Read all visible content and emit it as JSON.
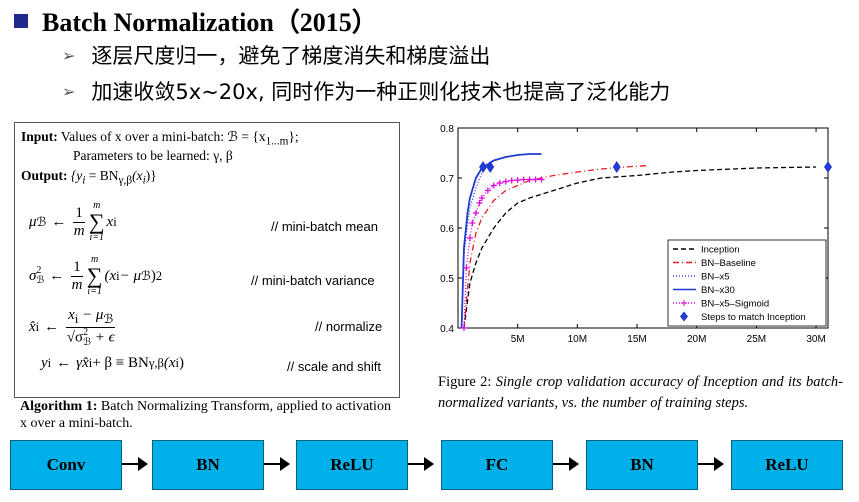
{
  "header": {
    "title": "Batch Normalization（2015）",
    "bullets": [
      "逐层尺度归一，避免了梯度消失和梯度溢出",
      "加速收敛5x~20x, 同时作为一种正则化技术也提高了泛化能力"
    ]
  },
  "algorithm": {
    "input_label": "Input:",
    "input_text": "Values of x over a mini-batch: ℬ = {x",
    "input_sub": "1...m",
    "input_close": "};",
    "params_text": "Parameters to be learned: γ, β",
    "output_label": "Output:",
    "output_text": "{y",
    "output_sub_i": "i",
    "output_rest": " = BN",
    "output_sub_gb": "γ,β",
    "output_end": "(x",
    "output_end2": ")}",
    "eq1": {
      "lhs": "μ",
      "lhs_sub": "ℬ",
      "arrow": "←",
      "frac_num": "1",
      "frac_den": "m",
      "sum_top": "m",
      "sum_bot": "i=1",
      "term": "x",
      "term_sub": "i",
      "comment": "// mini-batch mean"
    },
    "eq2": {
      "lhs": "σ",
      "lhs_sup": "2",
      "lhs_sub": "ℬ",
      "arrow": "←",
      "frac_num": "1",
      "frac_den": "m",
      "sum_top": "m",
      "sum_bot": "i=1",
      "term": "(x",
      "term_sub": "i",
      "term_rest": " − μ",
      "term_rest_sub": "ℬ",
      "term_end": ")",
      "term_sup": "2",
      "comment": "// mini-batch variance"
    },
    "eq3": {
      "lhs": "x̂",
      "lhs_sub": "i",
      "arrow": "←",
      "num": "x",
      "num_sub": "i",
      "num_rest": " − μ",
      "num_rest_sub": "ℬ",
      "den": "√σ",
      "den_sup": "2",
      "den_sub": "ℬ",
      "den_rest": " + ϵ",
      "comment": "// normalize"
    },
    "eq4": {
      "lhs": "y",
      "lhs_sub": "i",
      "arrow": "←",
      "rhs": "γx̂",
      "rhs_sub": "i",
      "rhs_rest": " + β ≡ BN",
      "rhs_sub2": "γ,β",
      "rhs_end": "(x",
      "rhs_end_sub": "i",
      "rhs_end2": ")",
      "comment": "// scale and shift"
    },
    "caption_label": "Algorithm 1:",
    "caption_text": " Batch Normalizing Transform, applied to activation x over a mini-batch."
  },
  "figure": {
    "caption_label": "Figure 2:",
    "caption_text": " Single crop validation accuracy of Inception and its batch-normalized variants, vs. the number of training steps."
  },
  "chart_data": {
    "type": "line",
    "xlabel": "",
    "ylabel": "",
    "xlim": [
      0,
      31
    ],
    "ylim": [
      0.4,
      0.8
    ],
    "x_ticks": [
      {
        "value": 5,
        "label": "5M"
      },
      {
        "value": 10,
        "label": "10M"
      },
      {
        "value": 15,
        "label": "15M"
      },
      {
        "value": 20,
        "label": "20M"
      },
      {
        "value": 25,
        "label": "25M"
      },
      {
        "value": 30,
        "label": "30M"
      }
    ],
    "y_ticks": [
      {
        "value": 0.4,
        "label": "0.4"
      },
      {
        "value": 0.5,
        "label": "0.5"
      },
      {
        "value": 0.6,
        "label": "0.6"
      },
      {
        "value": 0.7,
        "label": "0.7"
      },
      {
        "value": 0.8,
        "label": "0.8"
      }
    ],
    "legend_position": "bottom-right",
    "series": [
      {
        "name": "Inception",
        "color": "#000000",
        "style": "dashed",
        "x": [
          0.5,
          1,
          1.5,
          2,
          3,
          4,
          5,
          6,
          8,
          10,
          12,
          15,
          18,
          20,
          25,
          30
        ],
        "y": [
          0.4,
          0.49,
          0.53,
          0.56,
          0.6,
          0.63,
          0.65,
          0.66,
          0.675,
          0.69,
          0.7,
          0.705,
          0.712,
          0.715,
          0.72,
          0.722
        ]
      },
      {
        "name": "BN–Baseline",
        "color": "#e02020",
        "style": "dashdot",
        "x": [
          0.5,
          1,
          1.5,
          2,
          3,
          4,
          5,
          6,
          8,
          10,
          12,
          14,
          16
        ],
        "y": [
          0.4,
          0.53,
          0.59,
          0.62,
          0.655,
          0.675,
          0.685,
          0.695,
          0.705,
          0.712,
          0.718,
          0.722,
          0.725
        ]
      },
      {
        "name": "BN–x5",
        "color": "#4040c0",
        "style": "dotted",
        "x": [
          0.3,
          0.5,
          1,
          1.5,
          2,
          2.5
        ],
        "y": [
          0.4,
          0.55,
          0.64,
          0.68,
          0.71,
          0.725
        ]
      },
      {
        "name": "BN–x30",
        "color": "#1f3bd0",
        "style": "solid",
        "x": [
          0.3,
          0.5,
          0.8,
          1,
          1.5,
          2,
          3,
          4,
          5,
          6,
          7
        ],
        "y": [
          0.4,
          0.56,
          0.63,
          0.66,
          0.7,
          0.72,
          0.735,
          0.742,
          0.746,
          0.748,
          0.748
        ]
      },
      {
        "name": "BN–x5–Sigmoid",
        "color": "#e000e0",
        "style": "dotted-plus",
        "x": [
          0.5,
          0.7,
          1,
          1.2,
          1.5,
          1.8,
          2,
          2.5,
          3,
          3.5,
          4,
          4.5,
          5,
          5.5,
          6,
          6.5,
          7
        ],
        "y": [
          0.4,
          0.52,
          0.58,
          0.61,
          0.63,
          0.65,
          0.66,
          0.675,
          0.685,
          0.69,
          0.693,
          0.695,
          0.696,
          0.697,
          0.697,
          0.697,
          0.697
        ]
      },
      {
        "name": "Steps to match Inception",
        "color": "#1f3bd0",
        "style": "diamond-markers",
        "x": [
          2.1,
          2.7,
          13.3,
          31
        ],
        "y": [
          0.722,
          0.722,
          0.722,
          0.722
        ]
      }
    ]
  },
  "pipeline": {
    "steps": [
      "Conv",
      "BN",
      "ReLU",
      "FC",
      "BN",
      "ReLU"
    ]
  }
}
